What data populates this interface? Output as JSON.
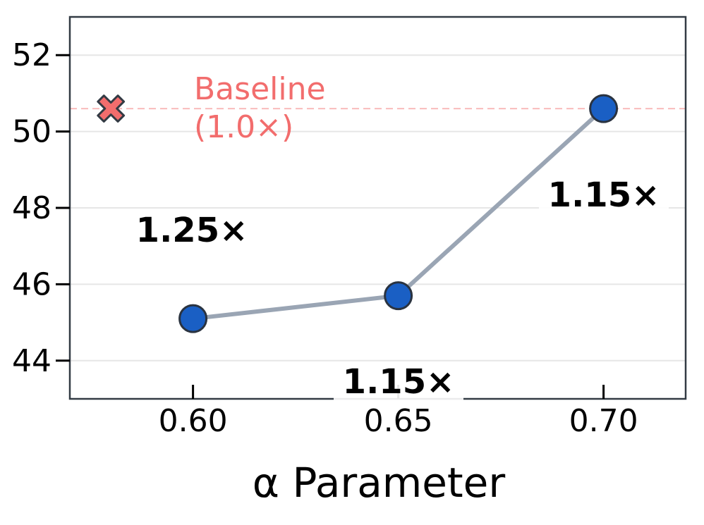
{
  "chart_data": {
    "type": "line",
    "title": "",
    "xlabel": "α Parameter",
    "ylabel": "",
    "xlim": [
      0.57,
      0.72
    ],
    "ylim": [
      43,
      53
    ],
    "x_ticks": [
      0.6,
      0.65,
      0.7
    ],
    "x_tick_labels": [
      "0.60",
      "0.65",
      "0.70"
    ],
    "y_ticks": [
      44,
      46,
      48,
      50,
      52
    ],
    "y_tick_labels": [
      "44",
      "46",
      "48",
      "50",
      "52"
    ],
    "grid": "horizontal",
    "series": [
      {
        "x": [
          0.6,
          0.65,
          0.7
        ],
        "y": [
          45.1,
          45.7,
          50.6
        ],
        "labels": [
          "1.25×",
          "1.15×",
          "1.15×"
        ],
        "line_color": "#9aa5b4",
        "marker_color": "#1a5fc4"
      }
    ],
    "baseline": {
      "label_line1": "Baseline",
      "label_line2": "(1.0×)",
      "y": 50.6,
      "marker_x": 0.58,
      "color": "#f26d6d"
    }
  }
}
